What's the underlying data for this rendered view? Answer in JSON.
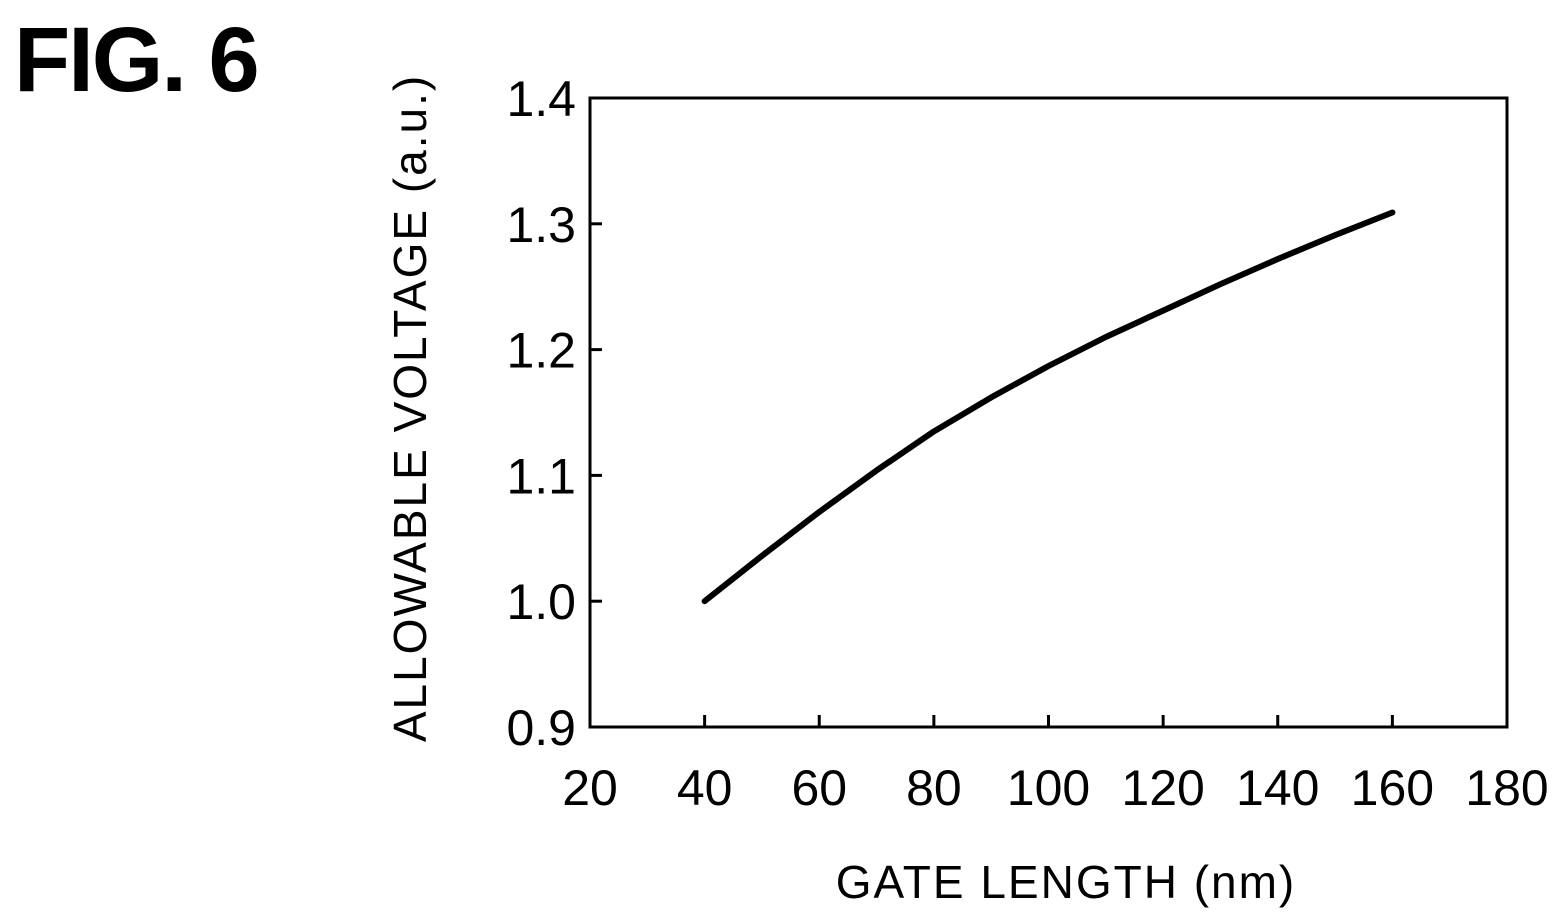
{
  "figure": {
    "label": "FIG. 6"
  },
  "chart_data": {
    "type": "line",
    "xlabel": "GATE LENGTH (nm)",
    "ylabel": "ALLOWABLE VOLTAGE (a.u.)",
    "xlim": [
      20,
      180
    ],
    "ylim": [
      0.9,
      1.4
    ],
    "xticks": [
      "20",
      "40",
      "60",
      "80",
      "100",
      "120",
      "140",
      "160",
      "180"
    ],
    "yticks": [
      "0.9",
      "1.0",
      "1.1",
      "1.2",
      "1.3",
      "1.4"
    ],
    "grid": false,
    "legend": "none",
    "series": [
      {
        "x": [
          40,
          50,
          60,
          70,
          80,
          90,
          100,
          110,
          120,
          130,
          140,
          150,
          160
        ],
        "y": [
          1.0,
          1.036,
          1.071,
          1.104,
          1.135,
          1.162,
          1.187,
          1.21,
          1.231,
          1.252,
          1.272,
          1.291,
          1.309
        ]
      }
    ],
    "line_color": "#000000"
  }
}
